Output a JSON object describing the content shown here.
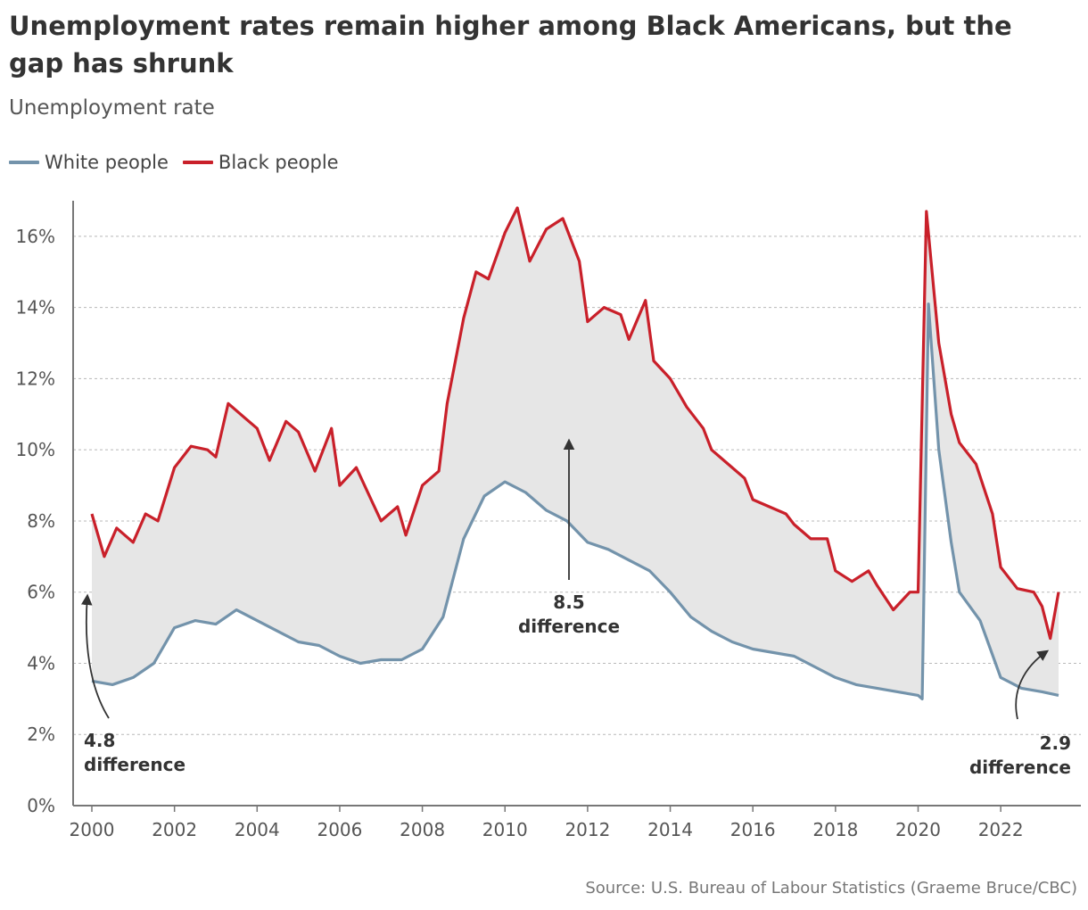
{
  "title": "Unemployment rates remain higher among Black Americans, but the gap has shrunk",
  "subtitle": "Unemployment rate",
  "source": "Source: U.S. Bureau of Labour Statistics (Graeme Bruce/CBC)",
  "legend": [
    {
      "label": "White people",
      "color": "#7393ab"
    },
    {
      "label": "Black people",
      "color": "#c9202a"
    }
  ],
  "annotations": [
    {
      "value": "4.8",
      "label": "difference",
      "year": 2000.0
    },
    {
      "value": "8.5",
      "label": "difference",
      "year": 2011.5
    },
    {
      "value": "2.9",
      "label": "difference",
      "year": 2023.4
    }
  ],
  "chart_data": {
    "type": "line",
    "title": "Unemployment rates remain higher among Black Americans, but the gap has shrunk",
    "ylabel": "Unemployment rate",
    "xlabel": "",
    "ylim": [
      0,
      17
    ],
    "xlim": [
      1999.5,
      2023.9
    ],
    "y_ticks": [
      0,
      2,
      4,
      6,
      8,
      10,
      12,
      14,
      16
    ],
    "y_tick_labels": [
      "0%",
      "2%",
      "4%",
      "6%",
      "8%",
      "10%",
      "12%",
      "14%",
      "16%"
    ],
    "x_ticks": [
      2000,
      2002,
      2004,
      2006,
      2008,
      2010,
      2012,
      2014,
      2016,
      2018,
      2020,
      2022
    ],
    "x_tick_labels": [
      "2000",
      "2002",
      "2004",
      "2006",
      "2008",
      "2010",
      "2012",
      "2014",
      "2016",
      "2018",
      "2020",
      "2022"
    ],
    "grid": "horizontal dashed",
    "gap_fill": true,
    "series": [
      {
        "name": "White people",
        "color": "#7393ab",
        "points": [
          [
            2000.0,
            3.5
          ],
          [
            2000.5,
            3.4
          ],
          [
            2001.0,
            3.6
          ],
          [
            2001.5,
            4.0
          ],
          [
            2002.0,
            5.0
          ],
          [
            2002.5,
            5.2
          ],
          [
            2003.0,
            5.1
          ],
          [
            2003.5,
            5.5
          ],
          [
            2004.0,
            5.2
          ],
          [
            2004.5,
            4.9
          ],
          [
            2005.0,
            4.6
          ],
          [
            2005.5,
            4.5
          ],
          [
            2006.0,
            4.2
          ],
          [
            2006.5,
            4.0
          ],
          [
            2007.0,
            4.1
          ],
          [
            2007.5,
            4.1
          ],
          [
            2008.0,
            4.4
          ],
          [
            2008.5,
            5.3
          ],
          [
            2009.0,
            7.5
          ],
          [
            2009.5,
            8.7
          ],
          [
            2010.0,
            9.1
          ],
          [
            2010.5,
            8.8
          ],
          [
            2011.0,
            8.3
          ],
          [
            2011.5,
            8.0
          ],
          [
            2012.0,
            7.4
          ],
          [
            2012.5,
            7.2
          ],
          [
            2013.0,
            6.9
          ],
          [
            2013.5,
            6.6
          ],
          [
            2014.0,
            6.0
          ],
          [
            2014.5,
            5.3
          ],
          [
            2015.0,
            4.9
          ],
          [
            2015.5,
            4.6
          ],
          [
            2016.0,
            4.4
          ],
          [
            2016.5,
            4.3
          ],
          [
            2017.0,
            4.2
          ],
          [
            2017.5,
            3.9
          ],
          [
            2018.0,
            3.6
          ],
          [
            2018.5,
            3.4
          ],
          [
            2019.0,
            3.3
          ],
          [
            2019.5,
            3.2
          ],
          [
            2020.0,
            3.1
          ],
          [
            2020.1,
            3.0
          ],
          [
            2020.25,
            14.1
          ],
          [
            2020.5,
            10.0
          ],
          [
            2020.8,
            7.4
          ],
          [
            2021.0,
            6.0
          ],
          [
            2021.5,
            5.2
          ],
          [
            2022.0,
            3.6
          ],
          [
            2022.5,
            3.3
          ],
          [
            2023.0,
            3.2
          ],
          [
            2023.4,
            3.1
          ]
        ]
      },
      {
        "name": "Black people",
        "color": "#c9202a",
        "points": [
          [
            2000.0,
            8.2
          ],
          [
            2000.3,
            7.0
          ],
          [
            2000.6,
            7.8
          ],
          [
            2001.0,
            7.4
          ],
          [
            2001.3,
            8.2
          ],
          [
            2001.6,
            8.0
          ],
          [
            2002.0,
            9.5
          ],
          [
            2002.4,
            10.1
          ],
          [
            2002.8,
            10.0
          ],
          [
            2003.0,
            9.8
          ],
          [
            2003.3,
            11.3
          ],
          [
            2003.7,
            10.9
          ],
          [
            2004.0,
            10.6
          ],
          [
            2004.3,
            9.7
          ],
          [
            2004.7,
            10.8
          ],
          [
            2005.0,
            10.5
          ],
          [
            2005.4,
            9.4
          ],
          [
            2005.8,
            10.6
          ],
          [
            2006.0,
            9.0
          ],
          [
            2006.4,
            9.5
          ],
          [
            2006.8,
            8.5
          ],
          [
            2007.0,
            8.0
          ],
          [
            2007.4,
            8.4
          ],
          [
            2007.6,
            7.6
          ],
          [
            2008.0,
            9.0
          ],
          [
            2008.4,
            9.4
          ],
          [
            2008.6,
            11.3
          ],
          [
            2009.0,
            13.7
          ],
          [
            2009.3,
            15.0
          ],
          [
            2009.6,
            14.8
          ],
          [
            2010.0,
            16.1
          ],
          [
            2010.3,
            16.8
          ],
          [
            2010.6,
            15.3
          ],
          [
            2011.0,
            16.2
          ],
          [
            2011.4,
            16.5
          ],
          [
            2011.8,
            15.3
          ],
          [
            2012.0,
            13.6
          ],
          [
            2012.4,
            14.0
          ],
          [
            2012.8,
            13.8
          ],
          [
            2013.0,
            13.1
          ],
          [
            2013.4,
            14.2
          ],
          [
            2013.6,
            12.5
          ],
          [
            2014.0,
            12.0
          ],
          [
            2014.4,
            11.2
          ],
          [
            2014.8,
            10.6
          ],
          [
            2015.0,
            10.0
          ],
          [
            2015.4,
            9.6
          ],
          [
            2015.8,
            9.2
          ],
          [
            2016.0,
            8.6
          ],
          [
            2016.4,
            8.4
          ],
          [
            2016.8,
            8.2
          ],
          [
            2017.0,
            7.9
          ],
          [
            2017.4,
            7.5
          ],
          [
            2017.8,
            7.5
          ],
          [
            2018.0,
            6.6
          ],
          [
            2018.4,
            6.3
          ],
          [
            2018.8,
            6.6
          ],
          [
            2019.0,
            6.2
          ],
          [
            2019.4,
            5.5
          ],
          [
            2019.8,
            6.0
          ],
          [
            2020.0,
            6.0
          ],
          [
            2020.2,
            16.7
          ],
          [
            2020.5,
            13.0
          ],
          [
            2020.8,
            11.0
          ],
          [
            2021.0,
            10.2
          ],
          [
            2021.4,
            9.6
          ],
          [
            2021.8,
            8.2
          ],
          [
            2022.0,
            6.7
          ],
          [
            2022.4,
            6.1
          ],
          [
            2022.8,
            6.0
          ],
          [
            2023.0,
            5.6
          ],
          [
            2023.2,
            4.7
          ],
          [
            2023.4,
            6.0
          ]
        ]
      }
    ]
  }
}
